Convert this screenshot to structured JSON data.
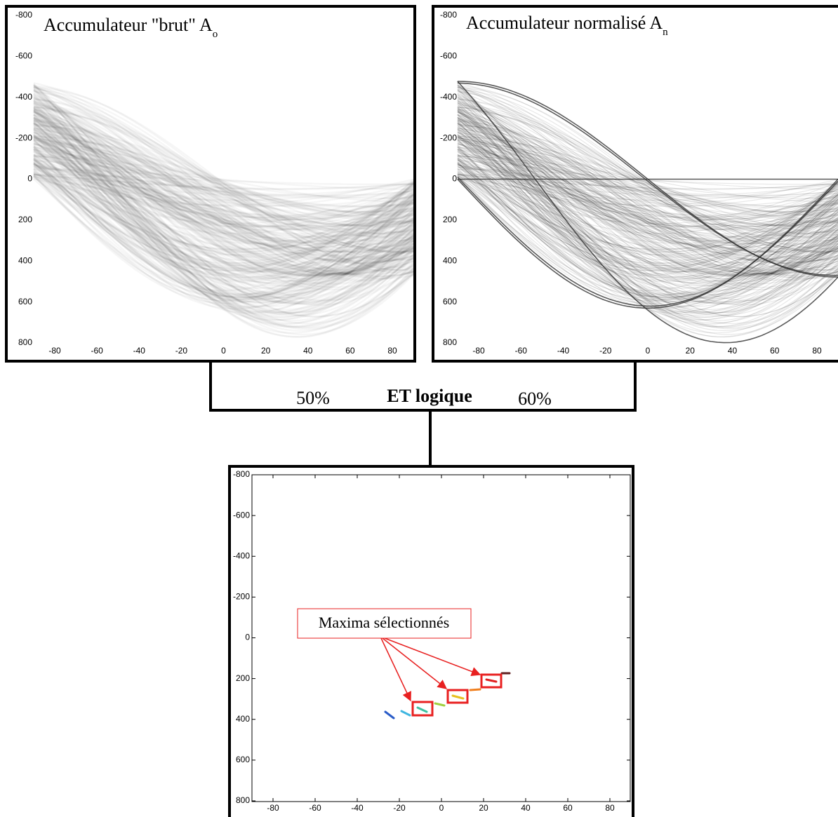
{
  "panels": [
    {
      "title": "Accumulateur \"brut\" A",
      "title_subscript": "o",
      "xticks": [
        -80,
        -60,
        -40,
        -20,
        0,
        20,
        40,
        60,
        80
      ],
      "yticks": [
        -800,
        -600,
        -400,
        -200,
        0,
        200,
        400,
        600,
        800
      ]
    },
    {
      "title": "Accumulateur normalisé A",
      "title_subscript": "n",
      "xticks": [
        -80,
        -60,
        -40,
        -20,
        0,
        20,
        40,
        60,
        80
      ],
      "yticks": [
        -800,
        -600,
        -400,
        -200,
        0,
        200,
        400,
        600,
        800
      ]
    },
    {
      "annotation": "Maxima sélectionnés",
      "xticks": [
        -80,
        -60,
        -40,
        -20,
        0,
        20,
        40,
        60,
        80
      ],
      "yticks": [
        -800,
        -600,
        -400,
        -200,
        0,
        200,
        400,
        600,
        800
      ]
    }
  ],
  "connector": {
    "left_label": "50%",
    "center_label": "ET logique",
    "right_label": "60%"
  }
}
